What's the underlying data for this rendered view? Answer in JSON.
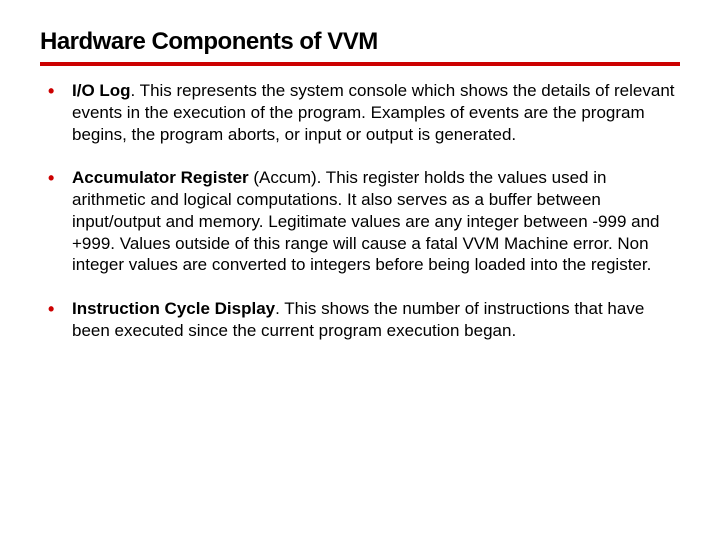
{
  "slide": {
    "title": "Hardware Components of VVM",
    "title_color": "#000000",
    "underline_color": "#cc0000",
    "bullet_color": "#cc0000",
    "background_color": "#ffffff",
    "font_family": "Verdana",
    "title_fontsize": 24,
    "body_fontsize": 17,
    "items": [
      {
        "term": "I/O Log",
        "body": ". This represents the system console which shows the details of relevant events in the execution of the program. Examples of events are the program begins, the program aborts, or input or output is generated."
      },
      {
        "term": "Accumulator Register",
        "body": " (Accum). This register holds the values used in arithmetic and logical computations. It also serves as a buffer between input/output and memory. Legitimate values are any integer between -999 and +999. Values outside of this range will cause a fatal VVM Machine error. Non integer values are converted to integers before being loaded into the register."
      },
      {
        "term": "Instruction Cycle Display",
        "body": ". This shows the number of instructions that have been executed since the current program execution began."
      }
    ]
  }
}
